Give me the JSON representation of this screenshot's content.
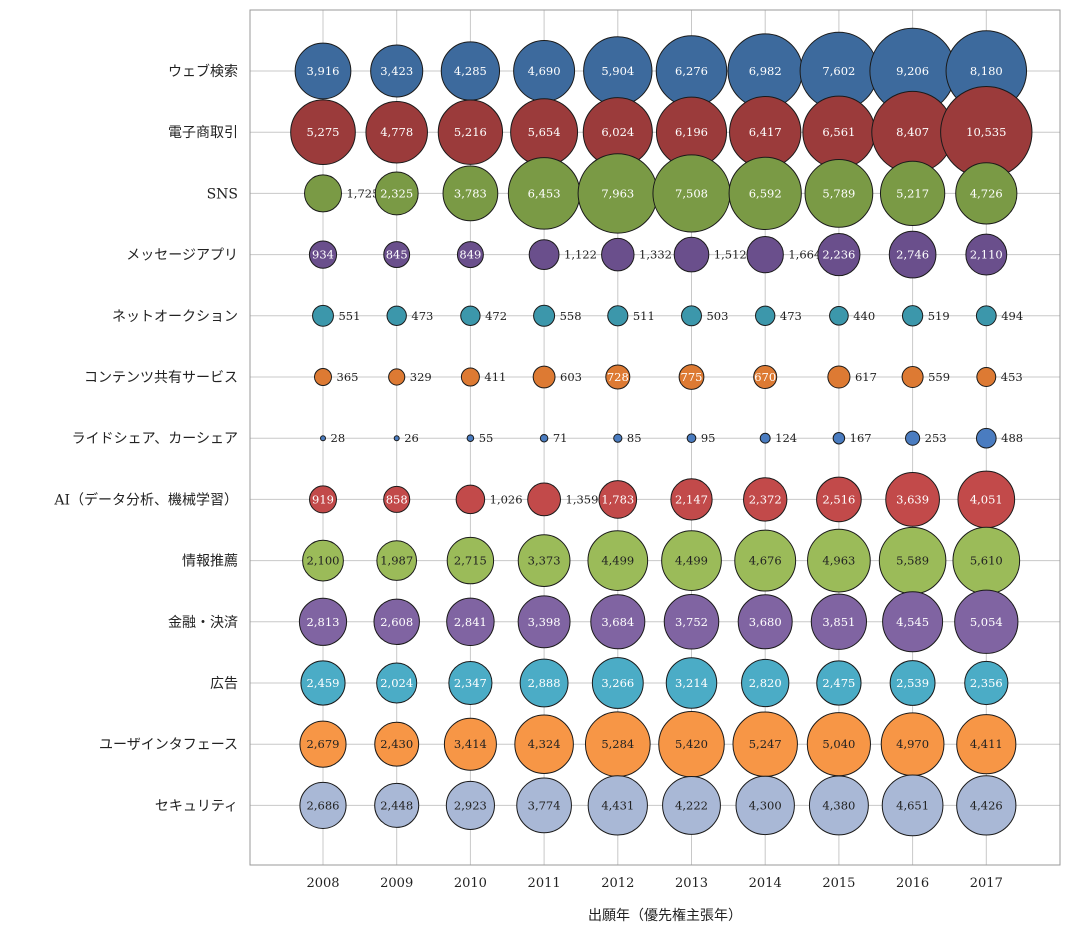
{
  "chart_data": {
    "type": "bubble",
    "title": "",
    "xlabel": "出願年（優先権主張年）",
    "ylabel": "",
    "grid": true,
    "x": [
      "2008",
      "2009",
      "2010",
      "2011",
      "2012",
      "2013",
      "2014",
      "2015",
      "2016",
      "2017"
    ],
    "categories": [
      "ウェブ検索",
      "電子商取引",
      "SNS",
      "メッセージアプリ",
      "ネットオークション",
      "コンテンツ共有サービス",
      "ライドシェア、カーシェア",
      "AI（データ分析、機械学習）",
      "情報推薦",
      "金融・決済",
      "広告",
      "ユーザインタフェース",
      "セキュリティ"
    ],
    "series": [
      {
        "values": [
          3916,
          3423,
          4285,
          4690,
          5904,
          6276,
          6982,
          7602,
          9206,
          8180
        ],
        "labels": [
          "3,916",
          "3,423",
          "4,285",
          "4,690",
          "5,904",
          "6,276",
          "6,982",
          "7,602",
          "9,206",
          "8,180"
        ],
        "color": "#3D6A9D"
      },
      {
        "values": [
          5275,
          4778,
          5216,
          5654,
          6024,
          6196,
          6417,
          6561,
          8407,
          10535
        ],
        "labels": [
          "5,275",
          "4,778",
          "5,216",
          "5,654",
          "6,024",
          "6,196",
          "6,417",
          "6,561",
          "8,407",
          "10,535"
        ],
        "color": "#9B3B3B"
      },
      {
        "values": [
          1725,
          2325,
          3783,
          6453,
          7963,
          7508,
          6592,
          5789,
          5217,
          4726
        ],
        "labels": [
          "1,725",
          "2,325",
          "3,783",
          "6,453",
          "7,963",
          "7,508",
          "6,592",
          "5,789",
          "5,217",
          "4,726"
        ],
        "color": "#7A9A45"
      },
      {
        "values": [
          934,
          845,
          849,
          1122,
          1332,
          1512,
          1664,
          2236,
          2746,
          2110
        ],
        "labels": [
          "934",
          "845",
          "849",
          "1,122",
          "1,332",
          "1,512",
          "1,664",
          "2,236",
          "2,746",
          "2,110"
        ],
        "color": "#6A4F8C"
      },
      {
        "values": [
          551,
          473,
          472,
          558,
          511,
          503,
          473,
          440,
          519,
          494
        ],
        "labels": [
          "551",
          "473",
          "472",
          "558",
          "511",
          "503",
          "473",
          "440",
          "519",
          "494"
        ],
        "color": "#3C97AB"
      },
      {
        "values": [
          365,
          329,
          411,
          603,
          728,
          775,
          670,
          617,
          559,
          453
        ],
        "labels": [
          "365",
          "329",
          "411",
          "603",
          "728",
          "775",
          "670",
          "617",
          "559",
          "453"
        ],
        "color": "#DD7A33"
      },
      {
        "values": [
          28,
          26,
          55,
          71,
          85,
          95,
          124,
          167,
          253,
          488
        ],
        "labels": [
          "28",
          "26",
          "55",
          "71",
          "85",
          "95",
          "124",
          "167",
          "253",
          "488"
        ],
        "color": "#4A7CC0"
      },
      {
        "values": [
          919,
          858,
          1026,
          1359,
          1783,
          2147,
          2372,
          2516,
          3639,
          4051
        ],
        "labels": [
          "919",
          "858",
          "1,026",
          "1,359",
          "1,783",
          "2,147",
          "2,372",
          "2,516",
          "3,639",
          "4,051"
        ],
        "color": "#C24A4A"
      },
      {
        "values": [
          2100,
          1987,
          2715,
          3373,
          4499,
          4499,
          4676,
          4963,
          5589,
          5610
        ],
        "labels": [
          "2,100",
          "1,987",
          "2,715",
          "3,373",
          "4,499",
          "4,499",
          "4,676",
          "4,963",
          "5,589",
          "5,610"
        ],
        "color": "#9BBB59"
      },
      {
        "values": [
          2813,
          2608,
          2841,
          3398,
          3684,
          3752,
          3680,
          3851,
          4545,
          5054
        ],
        "labels": [
          "2,813",
          "2,608",
          "2,841",
          "3,398",
          "3,684",
          "3,752",
          "3,680",
          "3,851",
          "4,545",
          "5,054"
        ],
        "color": "#8064A2"
      },
      {
        "values": [
          2459,
          2024,
          2347,
          2888,
          3266,
          3214,
          2820,
          2475,
          2539,
          2356
        ],
        "labels": [
          "2,459",
          "2,024",
          "2,347",
          "2,888",
          "3,266",
          "3,214",
          "2,820",
          "2,475",
          "2,539",
          "2,356"
        ],
        "color": "#4BACC6"
      },
      {
        "values": [
          2679,
          2430,
          3414,
          4324,
          5284,
          5420,
          5247,
          5040,
          4970,
          4411
        ],
        "labels": [
          "2,679",
          "2,430",
          "3,414",
          "4,324",
          "5,284",
          "5,420",
          "5,247",
          "5,040",
          "4,970",
          "4,411"
        ],
        "color": "#F79646"
      },
      {
        "values": [
          2686,
          2448,
          2923,
          3774,
          4431,
          4222,
          4300,
          4380,
          4651,
          4426
        ],
        "labels": [
          "2,686",
          "2,448",
          "2,923",
          "3,774",
          "4,431",
          "4,222",
          "4,300",
          "4,380",
          "4,651",
          "4,426"
        ],
        "color": "#A9B8D6"
      }
    ]
  }
}
